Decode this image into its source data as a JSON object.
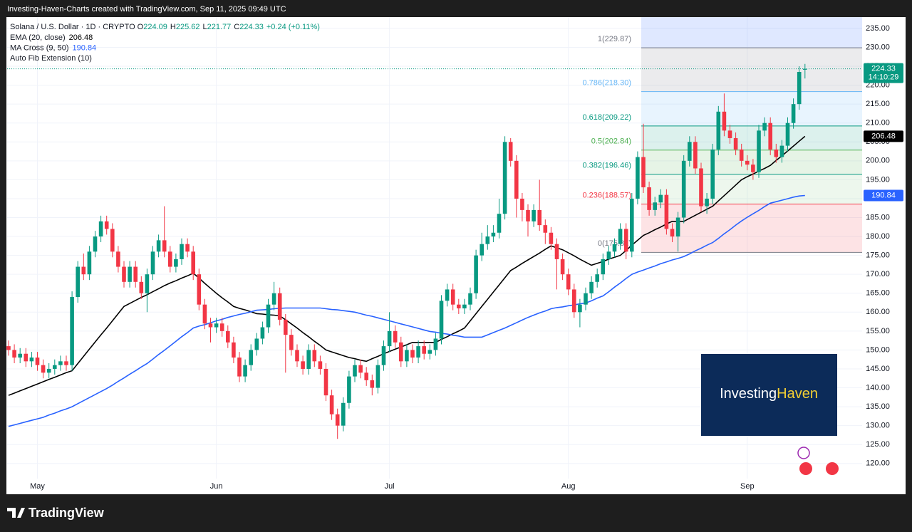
{
  "header": "Investing-Haven-Charts created with TradingView.com, Sep 11, 2025 09:49 UTC",
  "footer": "TradingView",
  "watermark": {
    "part1": "Investing",
    "part2": "Haven"
  },
  "chart_data": {
    "type": "candlestick",
    "legend": {
      "symbol": "Solana / U.S. Dollar · 1D · CRYPTO",
      "o": "O",
      "h": "H",
      "l": "L",
      "c": "C",
      "change": "+0.24 (+0.11%)"
    },
    "countdown": "14:10:29",
    "up_color": "#089981",
    "down_color": "#f23645",
    "categories": [
      null,
      null,
      null,
      null,
      null,
      "May",
      null,
      null,
      null,
      null,
      null,
      null,
      null,
      null,
      null,
      null,
      null,
      null,
      null,
      null,
      null,
      null,
      null,
      null,
      null,
      null,
      null,
      null,
      null,
      null,
      null,
      null,
      null,
      null,
      null,
      null,
      "Jun",
      null,
      null,
      null,
      null,
      null,
      null,
      null,
      null,
      null,
      null,
      null,
      null,
      null,
      null,
      null,
      null,
      null,
      null,
      null,
      null,
      null,
      null,
      null,
      null,
      null,
      null,
      null,
      null,
      null,
      "Jul",
      null,
      null,
      null,
      null,
      null,
      null,
      null,
      null,
      null,
      null,
      null,
      null,
      null,
      null,
      null,
      null,
      null,
      null,
      null,
      null,
      null,
      null,
      null,
      null,
      null,
      null,
      null,
      null,
      null,
      null,
      "Aug",
      null,
      null,
      null,
      null,
      null,
      null,
      null,
      null,
      null,
      null,
      null,
      null,
      null,
      null,
      null,
      null,
      null,
      null,
      null,
      null,
      null,
      null,
      null,
      null,
      null,
      null,
      null,
      null,
      null,
      null,
      "Sep",
      null,
      null,
      null,
      null,
      null,
      null,
      null,
      null,
      null,
      null
    ],
    "open": [
      151,
      150,
      148,
      149,
      147,
      148,
      146,
      144,
      145,
      146,
      147,
      146,
      164,
      172,
      170,
      176,
      180,
      184,
      182,
      176,
      172,
      168,
      172,
      168,
      165,
      170,
      176,
      179,
      176,
      172,
      174,
      178,
      176,
      170,
      162,
      157,
      156,
      157,
      155,
      152,
      148,
      143,
      146,
      150,
      153,
      156,
      162,
      165,
      158,
      154,
      150,
      147,
      145,
      150,
      147,
      145,
      138,
      133,
      130,
      136,
      143,
      146,
      144,
      142,
      140,
      146,
      151,
      155,
      152,
      147,
      150,
      148,
      151,
      149,
      150,
      153,
      163,
      166,
      162,
      161,
      162,
      165,
      175,
      178,
      180,
      181,
      186,
      205,
      200,
      190,
      187,
      184,
      187,
      183,
      181,
      178,
      174,
      170,
      166,
      160,
      162,
      165,
      168,
      170,
      174,
      176,
      178,
      182,
      176,
      190,
      201,
      193,
      187,
      189,
      191,
      182,
      180,
      185,
      200,
      205,
      198,
      188,
      190,
      203,
      213,
      208,
      206,
      203,
      200,
      199,
      197,
      208,
      210,
      203,
      201,
      204,
      210,
      215,
      224.09
    ],
    "high": [
      152.5,
      151.5,
      150.5,
      150.5,
      149.5,
      149.5,
      147.5,
      146.5,
      147.5,
      148.5,
      148.5,
      165.5,
      173.5,
      175.5,
      177.5,
      181.5,
      185.5,
      185.5,
      183.5,
      177.5,
      173.5,
      173.5,
      173.5,
      169.5,
      171.5,
      177.5,
      180.5,
      188,
      177.5,
      175.5,
      179.5,
      179.5,
      177.5,
      171.5,
      163.5,
      158.5,
      158.5,
      158.5,
      156.5,
      153.5,
      149.5,
      147.5,
      151.5,
      154.5,
      157.5,
      163.5,
      168,
      166.5,
      159.5,
      155.5,
      151.5,
      148.5,
      151.5,
      151.5,
      148.5,
      146.5,
      139.5,
      134.5,
      137.5,
      144.5,
      147.5,
      147.5,
      145.5,
      143.5,
      147.5,
      152.5,
      160,
      156.5,
      153.5,
      151.5,
      151.5,
      152.5,
      152.5,
      151.5,
      154.5,
      164.5,
      167.5,
      167.5,
      163.5,
      163.5,
      166.5,
      176.5,
      181,
      183,
      183,
      190,
      206.5,
      206,
      201.5,
      191.5,
      188.5,
      188.5,
      195,
      184.5,
      182.5,
      179.5,
      175.5,
      171.5,
      167.5,
      163.5,
      166.5,
      169.5,
      171.5,
      175.5,
      177.5,
      179.5,
      183.5,
      183.5,
      191.5,
      202.5,
      209.8,
      194.5,
      190.5,
      192.5,
      192.5,
      183.5,
      186.5,
      201.5,
      206.5,
      206.5,
      199.5,
      191.5,
      204.5,
      214.5,
      217.8,
      209.5,
      207.5,
      204.5,
      201.5,
      200.5,
      209.5,
      211.5,
      211.5,
      204.5,
      205.5,
      211.5,
      216.5,
      225,
      225.62
    ],
    "low": [
      148.5,
      146.5,
      146.5,
      145.5,
      145.5,
      144.5,
      142.5,
      142.5,
      143.5,
      144.5,
      144.5,
      144.5,
      162.5,
      168.5,
      168.5,
      174.5,
      178.5,
      180.5,
      174.5,
      170.5,
      166.5,
      166.5,
      166.5,
      163.5,
      160,
      168.5,
      174.5,
      174.5,
      170.5,
      170.5,
      172.5,
      174.5,
      168.5,
      160.5,
      155.5,
      152,
      154.5,
      153.5,
      150.5,
      146.5,
      141.5,
      141.5,
      144.5,
      148.5,
      151.5,
      154.5,
      160.5,
      156.5,
      144,
      148.5,
      145.5,
      143.5,
      143.5,
      145.5,
      143.5,
      136.5,
      131.5,
      126.5,
      128.5,
      134.5,
      141.5,
      142.5,
      140.5,
      138,
      138.5,
      144.5,
      149.5,
      150.5,
      145.5,
      145.5,
      146.5,
      146.5,
      147.5,
      147.5,
      148.5,
      151.5,
      161.5,
      160.5,
      159.5,
      159.5,
      160.5,
      163.5,
      173.5,
      176.5,
      178.5,
      179.5,
      184.5,
      198.5,
      185,
      184,
      180,
      182.5,
      181.5,
      178,
      176.5,
      166,
      168.5,
      164.5,
      158.5,
      156,
      160.5,
      163.5,
      166.5,
      168.5,
      172.5,
      174.5,
      176.5,
      174,
      174.5,
      188.5,
      191.5,
      185.5,
      185.5,
      187.5,
      180.5,
      178.5,
      176,
      183.5,
      198.5,
      196.5,
      186.5,
      186,
      188.5,
      201.5,
      206.5,
      204.5,
      201.5,
      198.5,
      197.5,
      195,
      195.5,
      206.5,
      201.5,
      199.5,
      199.5,
      202.5,
      208.5,
      213.5,
      221.77
    ],
    "close": [
      150,
      148,
      149,
      147,
      148,
      146,
      144,
      145,
      146,
      147,
      146,
      164,
      172,
      170,
      176,
      180,
      184,
      182,
      176,
      172,
      168,
      172,
      168,
      165,
      170,
      176,
      179,
      176,
      172,
      174,
      178,
      176,
      170,
      162,
      157,
      156,
      157,
      155,
      152,
      148,
      143,
      146,
      150,
      153,
      156,
      162,
      165,
      158,
      154,
      150,
      147,
      145,
      150,
      147,
      145,
      138,
      133,
      130,
      136,
      143,
      146,
      144,
      142,
      140,
      146,
      151,
      155,
      152,
      147,
      150,
      148,
      151,
      149,
      150,
      153,
      163,
      166,
      162,
      161,
      162,
      165,
      175,
      178,
      180,
      181,
      186,
      205,
      200,
      190,
      187,
      184,
      187,
      183,
      181,
      178,
      174,
      170,
      166,
      160,
      162,
      165,
      168,
      170,
      174,
      176,
      178,
      182,
      176,
      190,
      201,
      193,
      187,
      189,
      191,
      182,
      180,
      185,
      200,
      205,
      198,
      188,
      190,
      203,
      213,
      208,
      206,
      203,
      200,
      199,
      197,
      208,
      210,
      203,
      201,
      204,
      210,
      215,
      223.5,
      224.33
    ],
    "series": [
      {
        "name": "EMA (20, close)",
        "color": "#000000",
        "values": [
          138,
          138.6,
          139.2,
          139.8,
          140.4,
          141,
          141.6,
          142.2,
          142.8,
          143.4,
          144,
          144.5,
          146.4,
          148.3,
          150.2,
          152.1,
          154,
          155.8,
          157.7,
          159.6,
          161.5,
          162.3,
          163.1,
          163.9,
          164.6,
          165.4,
          166.2,
          167,
          167.7,
          168.3,
          169,
          169.6,
          170.3,
          169,
          167.6,
          166.3,
          165,
          163.8,
          162.7,
          161.5,
          161,
          160.6,
          160.1,
          159.6,
          159.5,
          159.3,
          159.2,
          159,
          158,
          156.9,
          155.8,
          154.6,
          153.5,
          152.3,
          151.2,
          150,
          149.5,
          149,
          148.5,
          148,
          147.7,
          147.3,
          147,
          147.7,
          148.3,
          149,
          149.6,
          150.2,
          150.8,
          151.4,
          152,
          152,
          152,
          152,
          152,
          152.8,
          153.5,
          154.3,
          155,
          155.8,
          157.7,
          159.6,
          161.5,
          163.4,
          165.3,
          167.2,
          169.1,
          171,
          171.9,
          172.9,
          173.8,
          174.7,
          175.6,
          176.6,
          177.5,
          177,
          176.5,
          175.7,
          174.9,
          174,
          173.2,
          172.4,
          172.9,
          173.4,
          174,
          174.5,
          175,
          176.3,
          177.7,
          179,
          180.3,
          181,
          181.8,
          182.5,
          183.3,
          184,
          184,
          184,
          184.8,
          185.6,
          186.4,
          187.2,
          188,
          189.4,
          190.8,
          192.2,
          193.6,
          195,
          195.8,
          196.5,
          197.3,
          198,
          198.8,
          200.1,
          201.3,
          202.6,
          203.9,
          205.2,
          206.48
        ]
      },
      {
        "name": "MA Cross (9, 50)",
        "color": "#2962ff",
        "values": [
          129.8,
          130.2,
          130.6,
          131,
          131.4,
          131.8,
          132.2,
          132.8,
          133.3,
          133.9,
          134.4,
          135,
          135.8,
          136.6,
          137.4,
          138.2,
          139,
          139.8,
          140.7,
          141.7,
          142.6,
          143.6,
          144.5,
          145.5,
          146.4,
          147.6,
          148.8,
          149.9,
          151.1,
          152.3,
          153.5,
          154.6,
          155.8,
          156.3,
          156.7,
          157.2,
          157.7,
          158.1,
          158.6,
          159,
          159.4,
          159.7,
          160.1,
          160.5,
          160.6,
          160.7,
          160.9,
          161,
          161.1,
          161.1,
          161.1,
          161.1,
          161.1,
          161.1,
          161.1,
          160.9,
          160.7,
          160.6,
          160.4,
          160.2,
          160,
          159.6,
          159.2,
          158.9,
          158.5,
          158.1,
          157.7,
          157.3,
          156.9,
          156.5,
          156.1,
          155.7,
          155.3,
          154.9,
          154.7,
          154.4,
          154.2,
          153.9,
          153.7,
          153.4,
          153.4,
          153.4,
          153.4,
          154,
          154.6,
          155.2,
          155.8,
          156.5,
          157.2,
          157.9,
          158.6,
          159.2,
          159.8,
          160.3,
          160.9,
          161.2,
          161.4,
          161.7,
          161.9,
          162.2,
          162.4,
          163,
          163.7,
          164.3,
          165.4,
          166.6,
          167.7,
          168.9,
          170,
          170.6,
          171.1,
          171.7,
          172.2,
          172.8,
          173.3,
          173.8,
          174.2,
          174.7,
          175.4,
          176.2,
          176.9,
          177.7,
          178.4,
          179.5,
          180.7,
          181.8,
          183,
          184.1,
          185.1,
          186,
          186.9,
          187.9,
          188.8,
          189.2,
          189.6,
          190,
          190.4,
          190.7,
          190.84
        ]
      }
    ],
    "fib": {
      "name": "Auto Fib Extension (10)",
      "values": [
        229.87,
        218.3,
        209.22,
        202.84,
        196.46,
        188.57,
        175.81
      ],
      "value_labels": [
        "1(229.87)",
        "0.786(218.30)",
        "0.618(209.22)",
        "0.5(202.84)",
        "0.382(196.46)",
        "0.236(188.57)",
        "0(175.81)"
      ],
      "colors": [
        "#787b86",
        "#64b5f6",
        "#089981",
        "#4caf50",
        "#089981",
        "#f23645",
        "#787b86"
      ],
      "band_colors": [
        "rgba(41,98,255,0.15)",
        "rgba(120,123,134,0.15)",
        "rgba(100,181,246,0.15)",
        "rgba(8,153,129,0.14)",
        "rgba(76,175,80,0.14)",
        "rgba(76,175,80,0.10)",
        "rgba(242,54,69,0.14)"
      ]
    },
    "ylim": [
      116,
      238
    ],
    "yticks": [
      {
        "value": 120,
        "label": "120.00"
      },
      {
        "value": 125,
        "label": "125.00"
      },
      {
        "value": 130,
        "label": "130.00"
      },
      {
        "value": 135,
        "label": "135.00"
      },
      {
        "value": 140,
        "label": "140.00"
      },
      {
        "value": 145,
        "label": "145.00"
      },
      {
        "value": 150,
        "label": "150.00"
      },
      {
        "value": 155,
        "label": "155.00"
      },
      {
        "value": 160,
        "label": "160.00"
      },
      {
        "value": 165,
        "label": "165.00"
      },
      {
        "value": 170,
        "label": "170.00"
      },
      {
        "value": 175,
        "label": "175.00"
      },
      {
        "value": 180,
        "label": "180.00"
      },
      {
        "value": 185,
        "label": "185.00"
      },
      {
        "value": 190,
        "label": "190.00"
      },
      {
        "value": 195,
        "label": "195.00"
      },
      {
        "value": 200,
        "label": "200.00"
      },
      {
        "value": 205,
        "label": "205.00"
      },
      {
        "value": 210,
        "label": "210.00"
      },
      {
        "value": 215,
        "label": "215.00"
      },
      {
        "value": 220,
        "label": "220.00"
      },
      {
        "value": 225,
        "label": "225.00"
      },
      {
        "value": 230,
        "label": "230.00"
      },
      {
        "value": 235,
        "label": "235.00"
      }
    ],
    "grid": true
  }
}
